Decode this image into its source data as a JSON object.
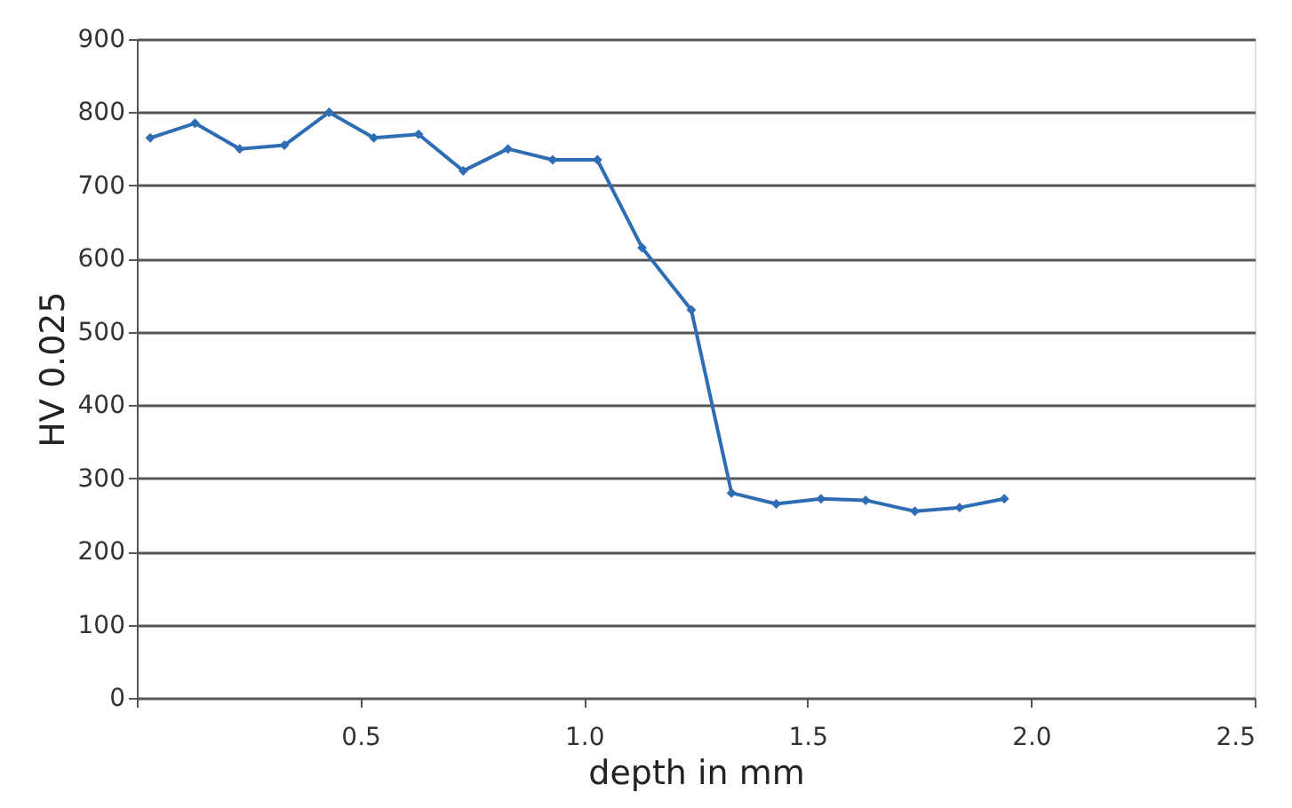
{
  "chart_data": {
    "type": "line",
    "xlabel": "depth in mm",
    "ylabel": "HV 0.025",
    "x": [
      0.03,
      0.13,
      0.23,
      0.33,
      0.43,
      0.53,
      0.63,
      0.73,
      0.83,
      0.93,
      1.03,
      1.13,
      1.24,
      1.33,
      1.43,
      1.53,
      1.63,
      1.74,
      1.84,
      1.94
    ],
    "series": [
      {
        "color": "#2e6db4",
        "values": [
          765,
          785,
          750,
          755,
          800,
          765,
          770,
          720,
          750,
          735,
          735,
          615,
          530,
          280,
          265,
          272,
          270,
          255,
          260,
          272
        ]
      }
    ],
    "xlim": [
      0,
      2.5
    ],
    "xticks": [
      {
        "value": 0,
        "label": null
      },
      0.5,
      {
        "value": 1.0,
        "label": "1.0"
      },
      1.5,
      {
        "value": 2.0,
        "label": "2.0"
      },
      2.5
    ],
    "ylim": [
      0,
      900
    ],
    "yticks": [
      0,
      100,
      200,
      300,
      400,
      500,
      600,
      700,
      800,
      900
    ],
    "grid": "y",
    "marker": "diamond",
    "line_style": "solid"
  }
}
